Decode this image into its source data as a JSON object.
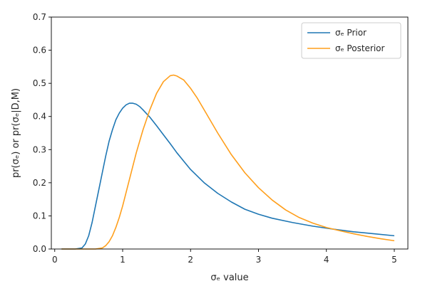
{
  "chart_data": {
    "type": "line",
    "xlabel": "σₑ value",
    "ylabel": "pr(σₑ) or pr(σₑ|D,M)",
    "xlim": [
      -0.05,
      5.2
    ],
    "ylim": [
      0.0,
      0.7
    ],
    "xticks": [
      "0",
      "1",
      "2",
      "3",
      "4",
      "5"
    ],
    "yticks": [
      "0.0",
      "0.1",
      "0.2",
      "0.3",
      "0.4",
      "0.5",
      "0.6",
      "0.7"
    ],
    "grid": false,
    "legend_position": "top-right",
    "series": [
      {
        "name": "σₑ Prior",
        "color": "#1f77b4",
        "x": [
          0.1,
          0.3,
          0.4,
          0.45,
          0.5,
          0.55,
          0.6,
          0.65,
          0.7,
          0.75,
          0.8,
          0.85,
          0.9,
          0.95,
          1.0,
          1.05,
          1.1,
          1.15,
          1.2,
          1.25,
          1.3,
          1.4,
          1.5,
          1.6,
          1.7,
          1.8,
          1.9,
          2.0,
          2.2,
          2.4,
          2.6,
          2.8,
          3.0,
          3.2,
          3.5,
          3.8,
          4.1,
          4.4,
          4.7,
          5.0
        ],
        "y": [
          0.0,
          0.0,
          0.003,
          0.015,
          0.04,
          0.08,
          0.13,
          0.18,
          0.23,
          0.28,
          0.325,
          0.36,
          0.39,
          0.41,
          0.425,
          0.435,
          0.44,
          0.44,
          0.437,
          0.43,
          0.42,
          0.398,
          0.372,
          0.345,
          0.318,
          0.29,
          0.265,
          0.24,
          0.2,
          0.168,
          0.142,
          0.12,
          0.105,
          0.093,
          0.08,
          0.069,
          0.06,
          0.052,
          0.046,
          0.04
        ]
      },
      {
        "name": "σₑ Posterior",
        "color": "#ff9f1c",
        "x": [
          0.1,
          0.5,
          0.6,
          0.7,
          0.75,
          0.8,
          0.85,
          0.9,
          0.95,
          1.0,
          1.05,
          1.1,
          1.15,
          1.2,
          1.3,
          1.4,
          1.5,
          1.6,
          1.7,
          1.75,
          1.8,
          1.9,
          2.0,
          2.1,
          2.2,
          2.4,
          2.6,
          2.8,
          3.0,
          3.2,
          3.4,
          3.6,
          3.8,
          4.0,
          4.2,
          4.4,
          4.6,
          4.8,
          5.0
        ],
        "y": [
          0.0,
          0.0,
          0.0,
          0.003,
          0.01,
          0.022,
          0.04,
          0.065,
          0.095,
          0.13,
          0.17,
          0.21,
          0.25,
          0.29,
          0.36,
          0.42,
          0.47,
          0.505,
          0.523,
          0.525,
          0.522,
          0.51,
          0.485,
          0.455,
          0.42,
          0.35,
          0.285,
          0.23,
          0.185,
          0.148,
          0.118,
          0.095,
          0.078,
          0.065,
          0.055,
          0.046,
          0.038,
          0.031,
          0.025
        ]
      }
    ]
  }
}
